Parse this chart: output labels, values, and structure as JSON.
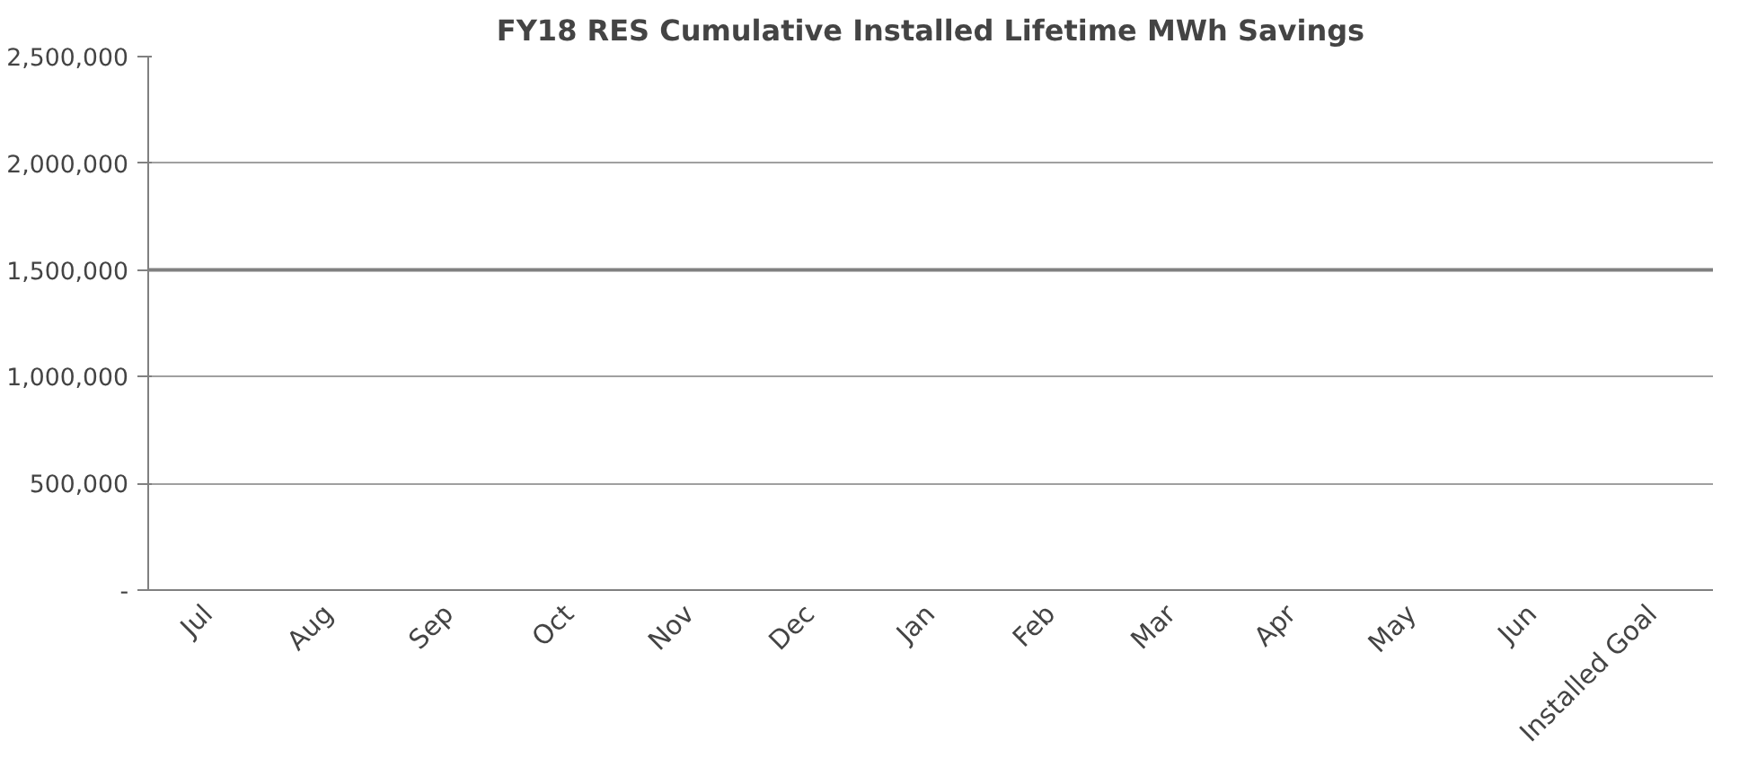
{
  "chart_data": {
    "type": "bar",
    "title": "FY18 RES Cumulative Installed Lifetime MWh Savings",
    "categories": [
      "Jul",
      "Aug",
      "Sep",
      "Oct",
      "Nov",
      "Dec",
      "Jan",
      "Feb",
      "Mar",
      "Apr",
      "May",
      "Jun",
      "Installed Goal"
    ],
    "values": [
      null,
      null,
      null,
      null,
      null,
      null,
      null,
      null,
      null,
      null,
      null,
      null,
      null
    ],
    "ylim": [
      0,
      2500000
    ],
    "yticks": [
      {
        "value": 0,
        "label": "-"
      },
      {
        "value": 500000,
        "label": "500,000"
      },
      {
        "value": 1000000,
        "label": "1,000,000"
      },
      {
        "value": 1500000,
        "label": "1,500,000"
      },
      {
        "value": 2000000,
        "label": "2,000,000"
      },
      {
        "value": 2500000,
        "label": "2,500,000"
      }
    ],
    "grid": "y",
    "ref_lines": [
      {
        "axis": "y",
        "value": 1500000,
        "color": "#808080"
      }
    ]
  }
}
